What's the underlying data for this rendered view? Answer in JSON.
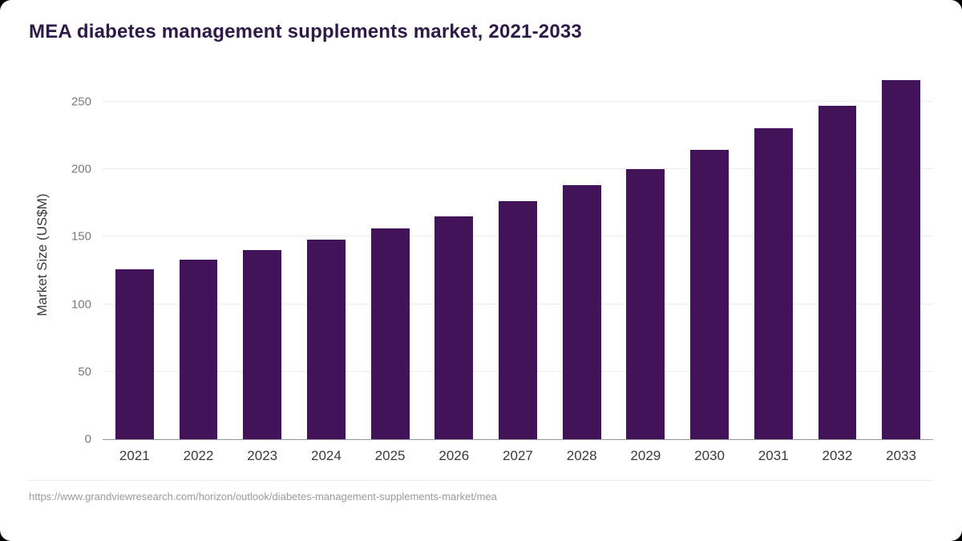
{
  "page": {
    "title": "MEA diabetes management supplements market, 2021-2033",
    "source_url": "https://www.grandviewresearch.com/horizon/outlook/diabetes-management-supplements-market/mea"
  },
  "chart_data": {
    "type": "bar",
    "title": "MEA diabetes management supplements market, 2021-2033",
    "xlabel": "",
    "ylabel": "Market Size (US$M)",
    "categories": [
      "2021",
      "2022",
      "2023",
      "2024",
      "2025",
      "2026",
      "2027",
      "2028",
      "2029",
      "2030",
      "2031",
      "2032",
      "2033"
    ],
    "values": [
      126,
      133,
      140,
      148,
      156,
      165,
      176,
      188,
      200,
      214,
      230,
      247,
      266
    ],
    "ylim": [
      0,
      273
    ],
    "yticks": [
      0,
      50,
      100,
      150,
      200,
      250
    ],
    "bar_color": "#421359",
    "grid": true,
    "legend": false
  }
}
